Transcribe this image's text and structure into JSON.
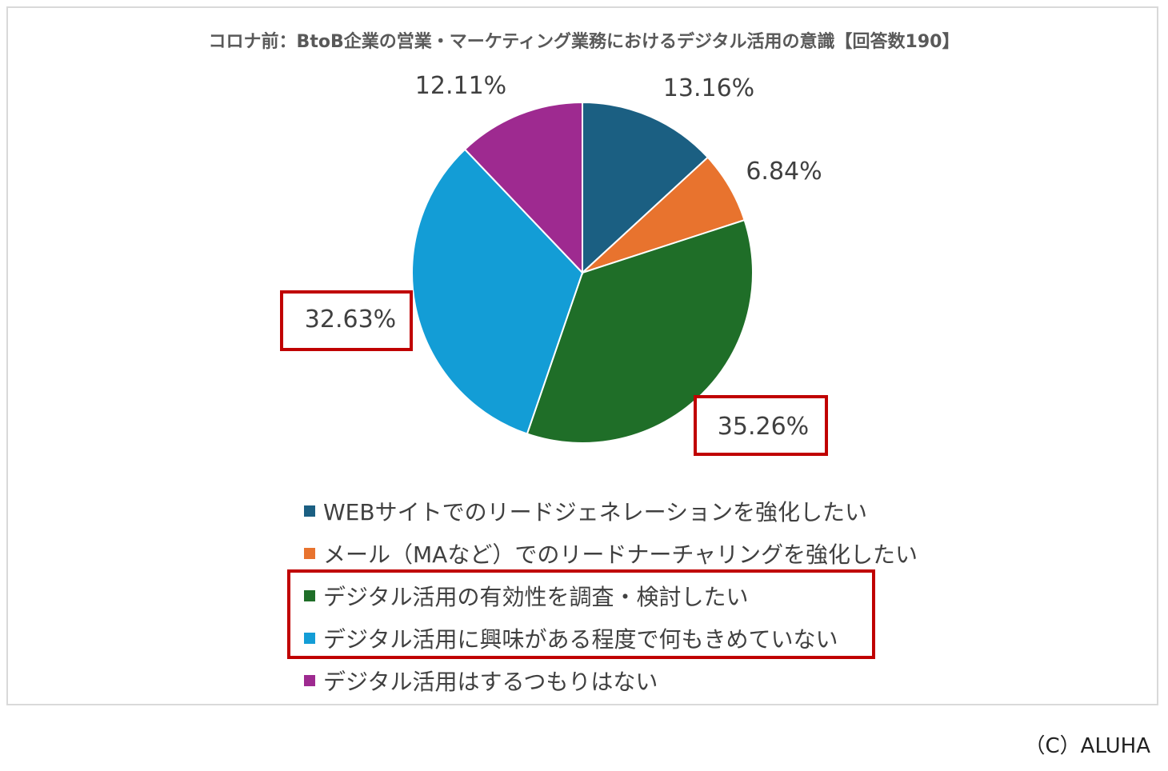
{
  "chart_data": {
    "type": "pie",
    "title": "コロナ前：BtoB企業の営業・マーケティング業務におけるデジタル活用の意識【回答数190】",
    "slices": [
      {
        "label": "WEBサイトでのリードジェネレーションを強化したい",
        "value": 13.16,
        "display": "13.16%",
        "color": "#1b5f82"
      },
      {
        "label": "メール（MAなど）でのリードナーチャリングを強化したい",
        "value": 6.84,
        "display": "6.84%",
        "color": "#e8732e"
      },
      {
        "label": "デジタル活用の有効性を調査・検討したい",
        "value": 35.26,
        "display": "35.26%",
        "color": "#1f6e28"
      },
      {
        "label": "デジタル活用に興味がある程度で何もきめていない",
        "value": 32.63,
        "display": "32.63%",
        "color": "#139dd6"
      },
      {
        "label": "デジタル活用はするつもりはない",
        "value": 12.11,
        "display": "12.11%",
        "color": "#9e2a90"
      }
    ],
    "highlighted": [
      "35.26%",
      "32.63%",
      "デジタル活用の有効性を調査・検討したい",
      "デジタル活用に興味がある程度で何もきめていない"
    ],
    "highlight_color": "#c00000",
    "legend_position": "bottom",
    "start_angle": "top, clockwise"
  },
  "credit": "（C）ALUHA"
}
